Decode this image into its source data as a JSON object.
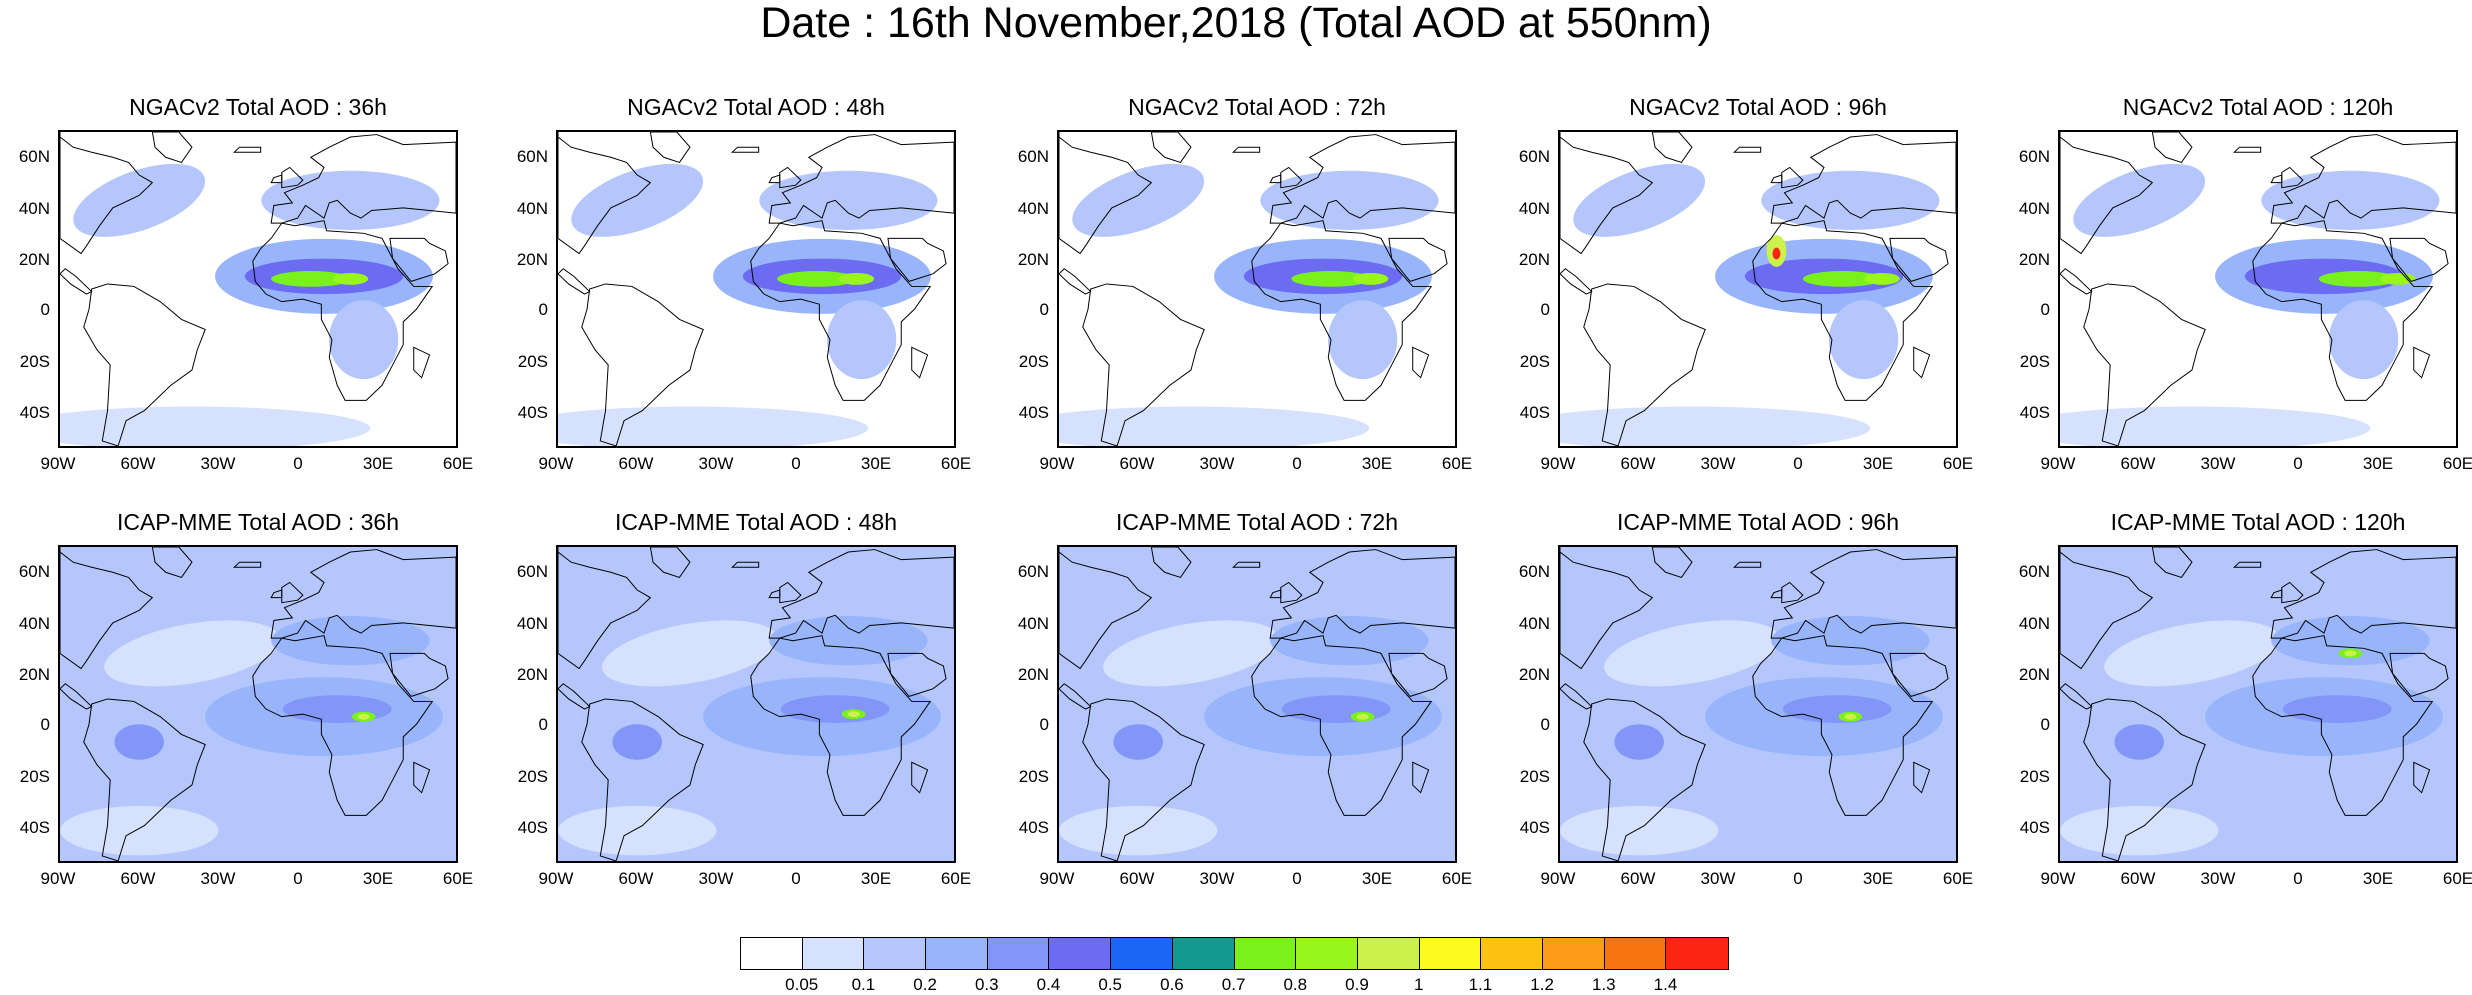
{
  "title": "Date : 16th November,2018 (Total AOD at 550nm)",
  "panels": [
    {
      "id": "ngac-36",
      "title": "NGACv2 Total AOD : 36h"
    },
    {
      "id": "ngac-48",
      "title": "NGACv2 Total AOD : 48h"
    },
    {
      "id": "ngac-72",
      "title": "NGACv2 Total AOD : 72h"
    },
    {
      "id": "ngac-96",
      "title": "NGACv2 Total AOD : 96h"
    },
    {
      "id": "ngac-120",
      "title": "NGACv2 Total AOD : 120h"
    },
    {
      "id": "icap-36",
      "title": "ICAP-MME Total AOD : 36h"
    },
    {
      "id": "icap-48",
      "title": "ICAP-MME Total AOD : 48h"
    },
    {
      "id": "icap-72",
      "title": "ICAP-MME Total AOD : 72h"
    },
    {
      "id": "icap-96",
      "title": "ICAP-MME Total AOD : 96h"
    },
    {
      "id": "icap-120",
      "title": "ICAP-MME Total AOD : 120h"
    }
  ],
  "lat_ticks": [
    "60N",
    "40N",
    "20N",
    "0",
    "20S",
    "40S"
  ],
  "lon_ticks": [
    "90W",
    "60W",
    "30W",
    "0",
    "30E",
    "60E"
  ],
  "colorbar": {
    "colors": [
      "#ffffff",
      "#d6e1fe",
      "#b4c6fc",
      "#98b4fb",
      "#8296f8",
      "#6b6cf1",
      "#1c66f5",
      "#129a8e",
      "#7af11a",
      "#99f61d",
      "#cbf24a",
      "#fdfa1f",
      "#fdc212",
      "#fd9c16",
      "#f77411",
      "#fc2513"
    ],
    "labels": [
      "0.05",
      "0.1",
      "0.2",
      "0.3",
      "0.4",
      "0.5",
      "0.6",
      "0.7",
      "0.8",
      "0.9",
      "1",
      "1.1",
      "1.2",
      "1.3",
      "1.4"
    ]
  }
}
